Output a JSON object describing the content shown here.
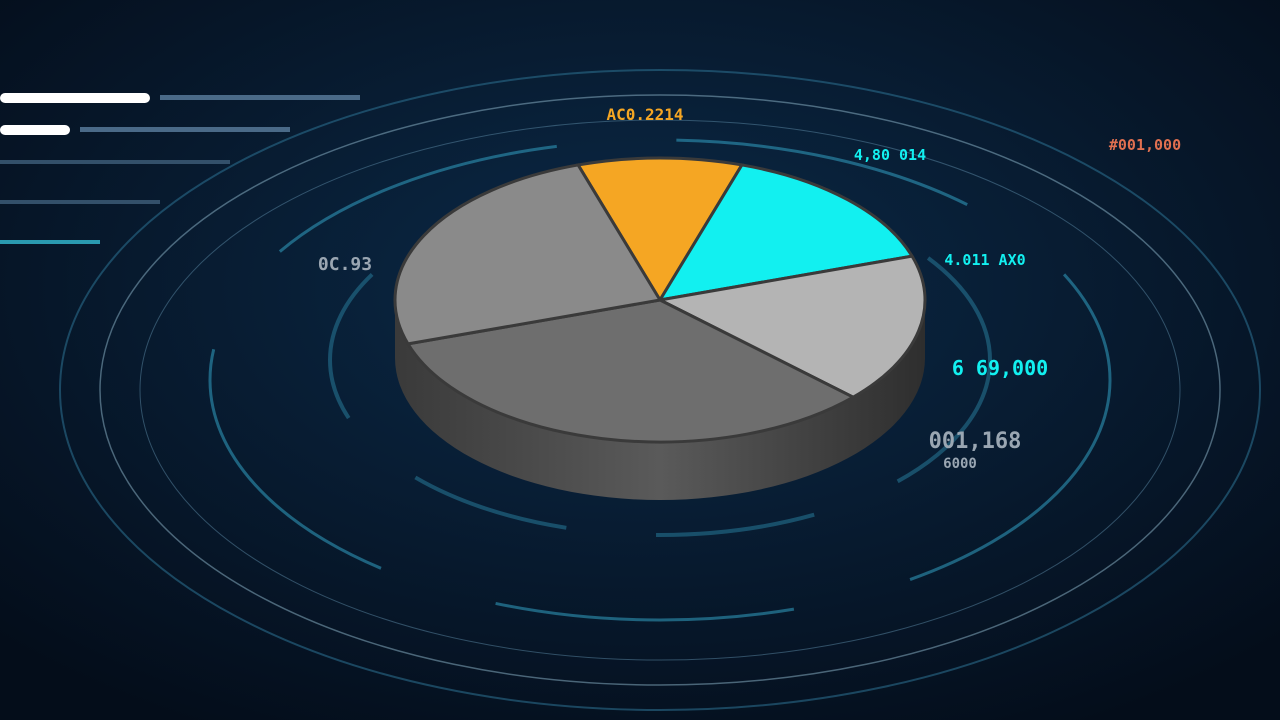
{
  "chart_data": {
    "type": "pie",
    "values": [
      10,
      15,
      17,
      33,
      25
    ],
    "colors": [
      "#f5a623",
      "#12f0f0",
      "#b4b4b4",
      "#6e6e6e",
      "#8a8a8a"
    ],
    "annotations": [
      "AC0.2214",
      "4,80 014",
      "#001,000",
      "4.011 AX0",
      "0C.93",
      "6 69,000",
      "001,168",
      "6000"
    ]
  }
}
